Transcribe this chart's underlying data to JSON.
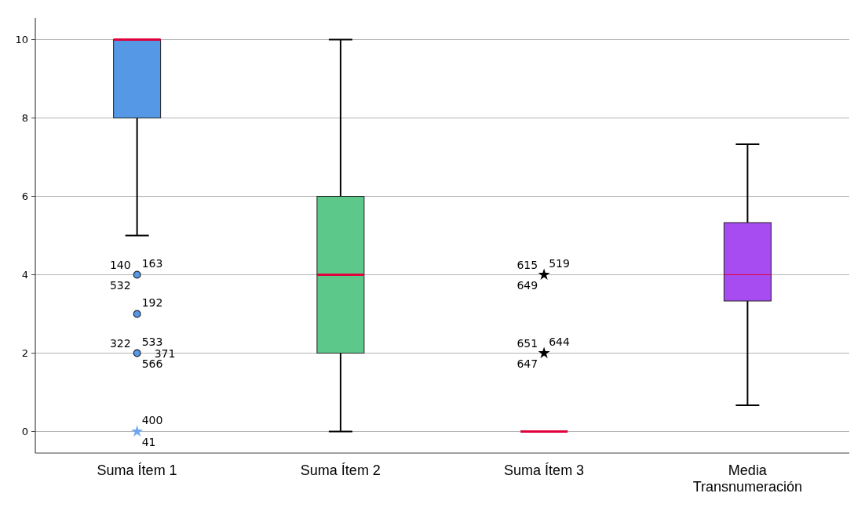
{
  "chart_data": {
    "type": "box",
    "categories": [
      "Suma Ítem 1",
      "Suma Ítem 2",
      "Suma Ítem 3",
      "Media Transnumeración"
    ],
    "colors": [
      "#5599e6",
      "#5cc98a",
      "#e0003c",
      "#a64cf0"
    ],
    "boxes": [
      {
        "low": 5,
        "q1": 8,
        "median": 10,
        "q3": 10,
        "high": 10
      },
      {
        "low": 0,
        "q1": 2,
        "median": 4,
        "q3": 6,
        "high": 10
      },
      {
        "low": 0,
        "q1": 0,
        "median": 0,
        "q3": 0,
        "high": 0
      },
      {
        "low": 0.67,
        "q1": 3.33,
        "median": 4,
        "q3": 5.33,
        "high": 7.33
      }
    ],
    "series": [
      {
        "type": "scatter",
        "marker": "circle",
        "x": [
          "Suma Ítem 1",
          "Suma Ítem 1",
          "Suma Ítem 1"
        ],
        "values": [
          4,
          3,
          2
        ],
        "colors": [
          "#5599e6",
          "#5599e6",
          "#5599e6"
        ]
      },
      {
        "type": "scatter",
        "marker": "star",
        "x": [
          "Suma Ítem 1",
          "Suma Ítem 3",
          "Suma Ítem 3"
        ],
        "values": [
          0,
          4,
          2
        ],
        "colors": [
          "#6fa8ef",
          "#000000",
          "#000000"
        ]
      }
    ],
    "ylim": [
      -0.55,
      10.55
    ],
    "yticks": [
      0,
      2,
      4,
      6,
      8,
      10
    ],
    "grid": "y",
    "annotations": [
      {
        "text": "140",
        "x": "Suma Ítem 1",
        "y": 4
      },
      {
        "text": "163",
        "x": "Suma Ítem 1",
        "y": 4
      },
      {
        "text": "532",
        "x": "Suma Ítem 1",
        "y": 4
      },
      {
        "text": "192",
        "x": "Suma Ítem 1",
        "y": 3
      },
      {
        "text": "322",
        "x": "Suma Ítem 1",
        "y": 2
      },
      {
        "text": "533",
        "x": "Suma Ítem 1",
        "y": 2
      },
      {
        "text": "371",
        "x": "Suma Ítem 1",
        "y": 2
      },
      {
        "text": "566",
        "x": "Suma Ítem 1",
        "y": 2
      },
      {
        "text": "400",
        "x": "Suma Ítem 1",
        "y": 0
      },
      {
        "text": "41",
        "x": "Suma Ítem 1",
        "y": 0
      },
      {
        "text": "615",
        "x": "Suma Ítem 3",
        "y": 4
      },
      {
        "text": "519",
        "x": "Suma Ítem 3",
        "y": 4
      },
      {
        "text": "649",
        "x": "Suma Ítem 3",
        "y": 4
      },
      {
        "text": "651",
        "x": "Suma Ítem 3",
        "y": 2
      },
      {
        "text": "644",
        "x": "Suma Ítem 3",
        "y": 2
      },
      {
        "text": "647",
        "x": "Suma Ítem 3",
        "y": 2
      }
    ]
  }
}
